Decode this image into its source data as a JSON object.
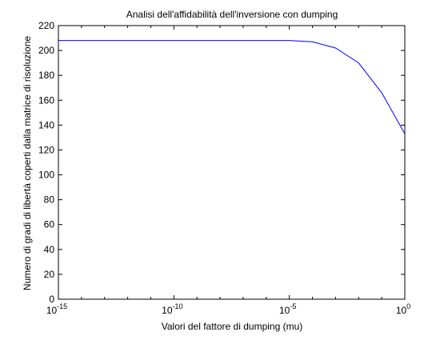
{
  "chart_data": {
    "type": "line",
    "title": "Analisi dell'affidabilità dell'inversione con dumping",
    "xlabel": "Valori del fattore di dumping (mu)",
    "ylabel": "Numero di gradi di libertà coperti dalla matrice di risoluzione",
    "xscale": "log",
    "xlim": [
      1e-15,
      1
    ],
    "ylim": [
      0,
      220
    ],
    "x_ticks": [
      {
        "base": "10",
        "exp": "-15",
        "value": 1e-15
      },
      {
        "base": "10",
        "exp": "-10",
        "value": 1e-10
      },
      {
        "base": "10",
        "exp": "-5",
        "value": 1e-05
      },
      {
        "base": "10",
        "exp": "0",
        "value": 1
      }
    ],
    "y_ticks": [
      "0",
      "20",
      "40",
      "60",
      "80",
      "100",
      "120",
      "140",
      "160",
      "180",
      "200",
      "220"
    ],
    "grid": false,
    "series": [
      {
        "color": "#0000ff",
        "x": [
          1e-15,
          1e-10,
          1e-05,
          0.0001,
          0.001,
          0.01,
          0.1,
          1
        ],
        "y": [
          208,
          208,
          208,
          207,
          202,
          190,
          166,
          133
        ]
      }
    ]
  }
}
